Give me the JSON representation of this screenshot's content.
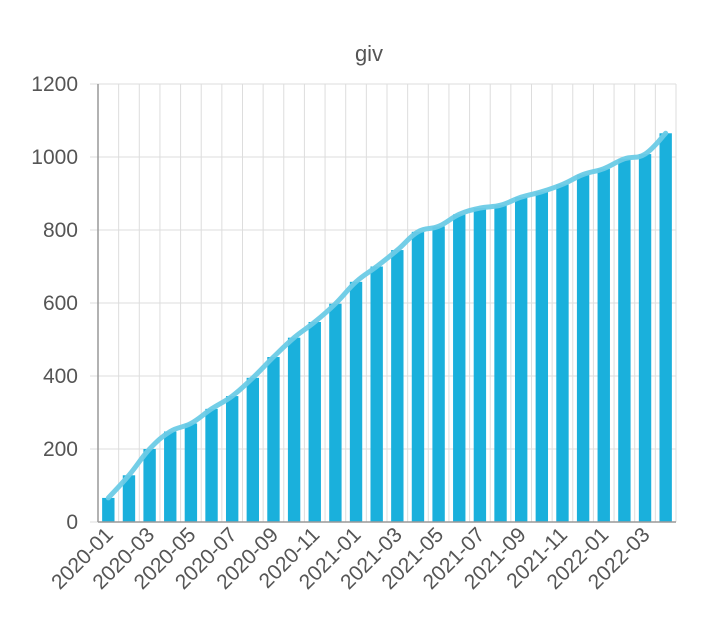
{
  "chart_data": {
    "type": "bar",
    "title": "giv",
    "xlabel": "",
    "ylabel": "",
    "ylim": [
      0,
      1200
    ],
    "yticks": [
      0,
      200,
      400,
      600,
      800,
      1000,
      1200
    ],
    "grid": true,
    "legend": "none",
    "categories": [
      "2020-01",
      "2020-02",
      "2020-03",
      "2020-04",
      "2020-05",
      "2020-06",
      "2020-07",
      "2020-08",
      "2020-09",
      "2020-10",
      "2020-11",
      "2020-12",
      "2021-01",
      "2021-02",
      "2021-03",
      "2021-04",
      "2021-05",
      "2021-06",
      "2021-07",
      "2021-08",
      "2021-09",
      "2021-10",
      "2021-11",
      "2021-12",
      "2022-01",
      "2022-02",
      "2022-03",
      "2022-04"
    ],
    "xtick_labels": [
      "2020-01",
      "2020-03",
      "2020-05",
      "2020-07",
      "2020-09",
      "2020-11",
      "2021-01",
      "2021-03",
      "2021-05",
      "2021-07",
      "2021-09",
      "2021-11",
      "2022-01",
      "2022-03"
    ],
    "series": [
      {
        "type": "bar",
        "color": "#1ab0dc",
        "values": [
          66,
          128,
          200,
          248,
          270,
          310,
          345,
          395,
          452,
          505,
          548,
          598,
          658,
          700,
          745,
          795,
          810,
          843,
          860,
          868,
          890,
          905,
          925,
          952,
          968,
          995,
          1008,
          1065
        ]
      },
      {
        "type": "line",
        "color": "#6ccbe6",
        "values": [
          66,
          128,
          200,
          248,
          270,
          310,
          345,
          395,
          452,
          505,
          548,
          598,
          658,
          700,
          745,
          795,
          810,
          843,
          860,
          868,
          890,
          905,
          925,
          952,
          968,
          995,
          1008,
          1065
        ]
      }
    ]
  }
}
